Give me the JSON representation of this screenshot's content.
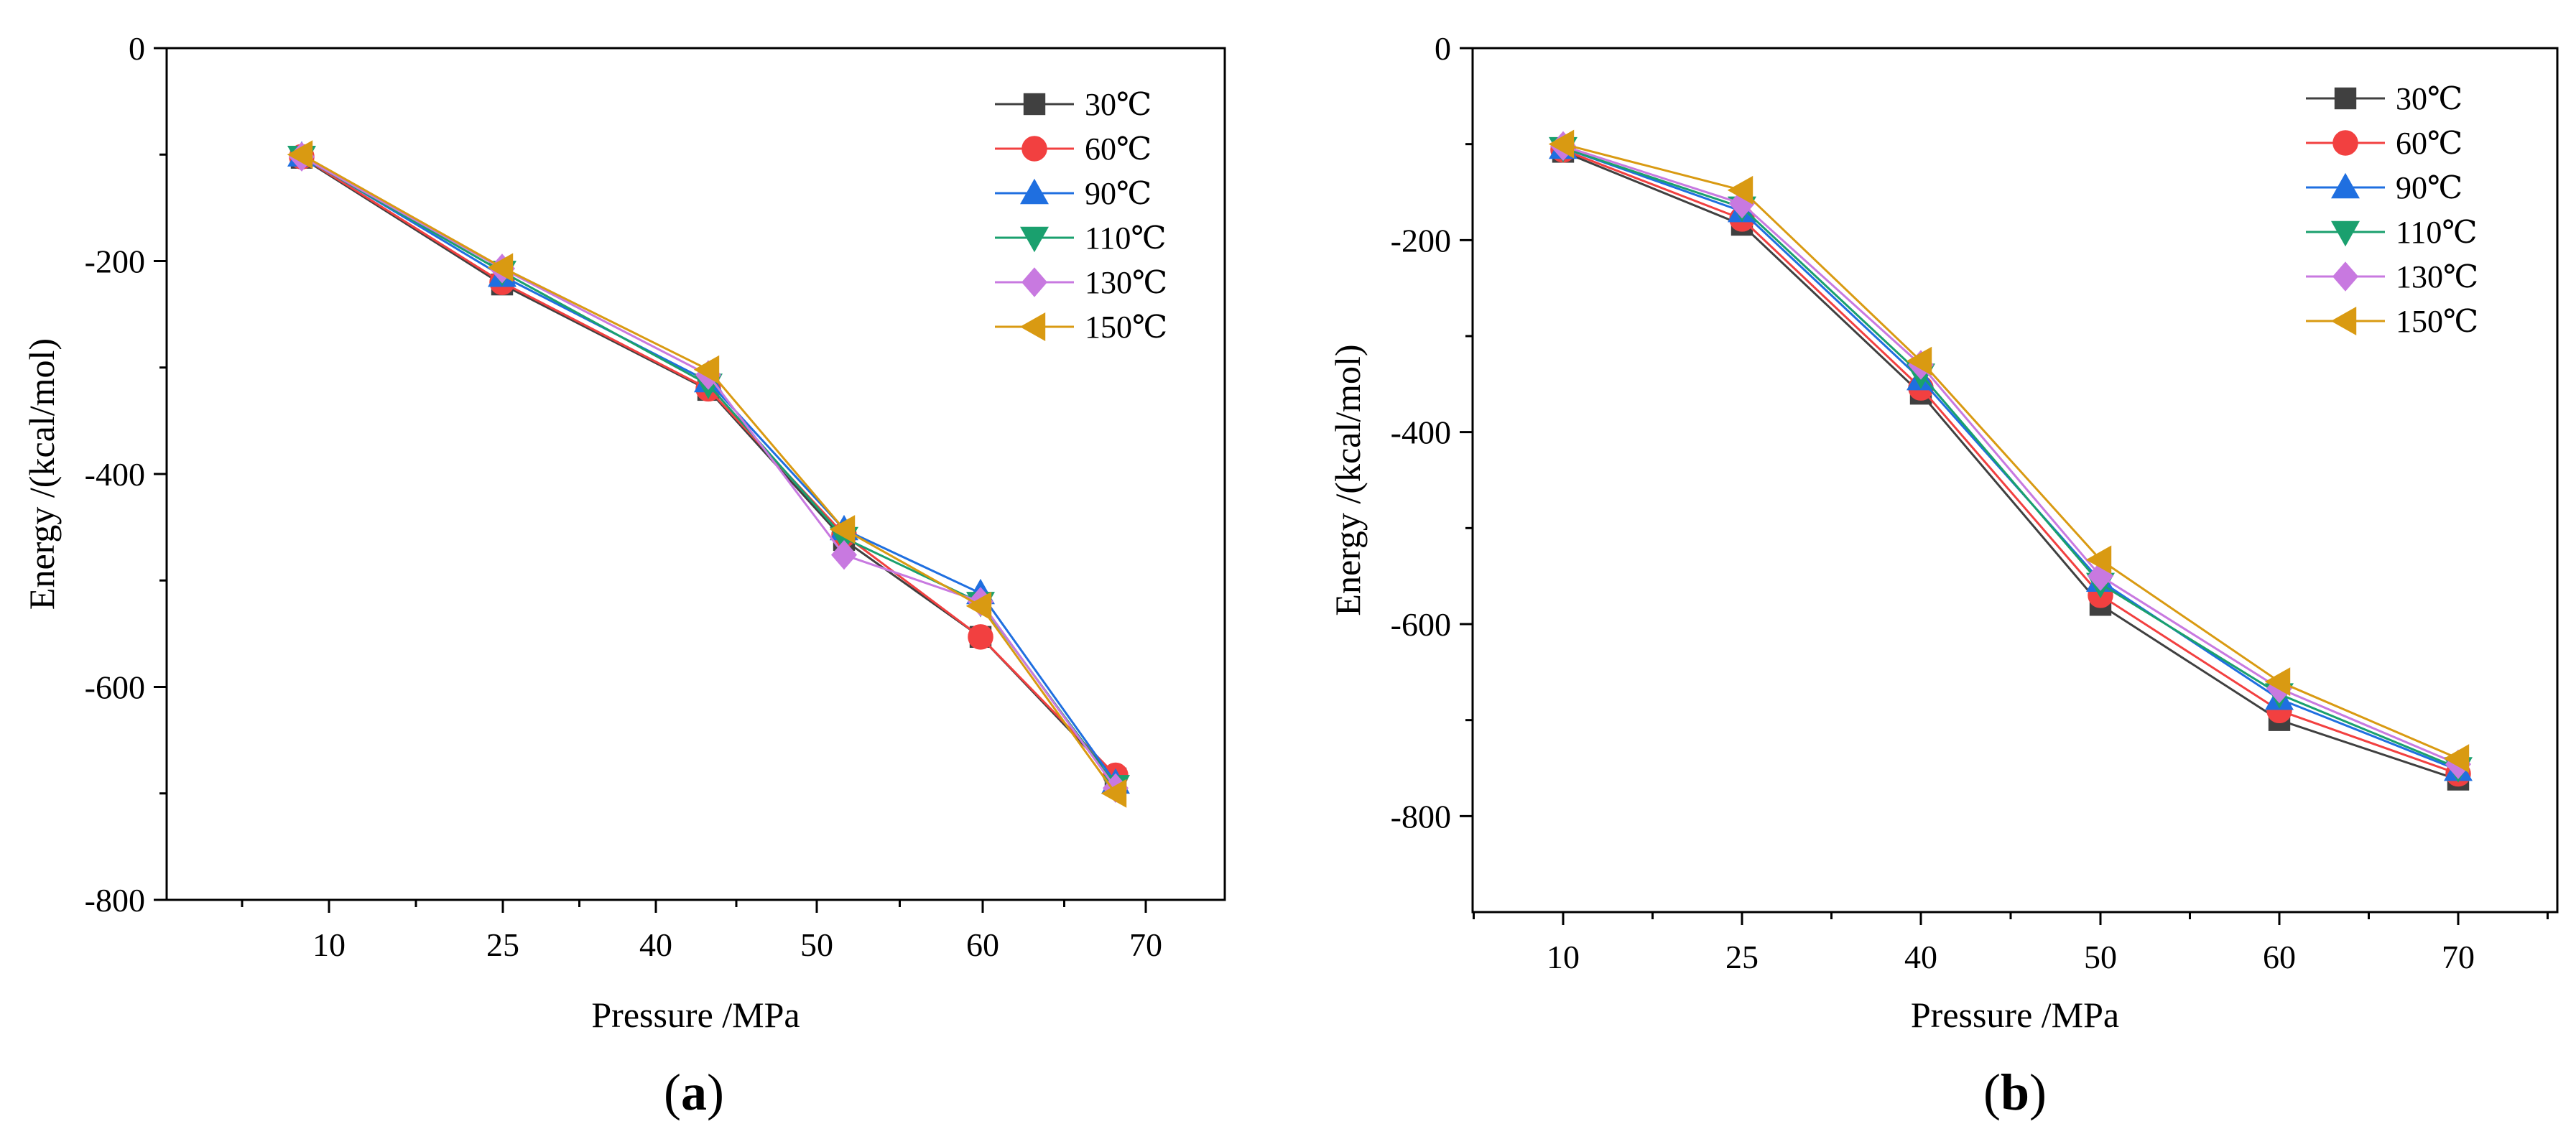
{
  "chart_data": [
    {
      "type": "line",
      "panel_label": "a",
      "xlabel": "Pressure /MPa",
      "ylabel": "Energy /(kcal/mol)",
      "x_ticks": [
        "10",
        "25",
        "40",
        "50",
        "60",
        "70"
      ],
      "y_ticks": [
        0,
        -200,
        -400,
        -600,
        -800
      ],
      "ylim": [
        -800,
        0
      ],
      "legend_position": "top-right",
      "series": [
        {
          "name": "30℃",
          "marker": "square",
          "color": "#404040",
          "x": [
            9.2,
            25.4,
            43.2,
            51.4,
            60.0,
            68.4
          ],
          "y": [
            -103,
            -222,
            -321,
            -462,
            -553,
            -686
          ]
        },
        {
          "name": "60℃",
          "marker": "circle",
          "color": "#f24040",
          "x": [
            9.2,
            25.4,
            43.2,
            51.4,
            60.0,
            68.4
          ],
          "y": [
            -102,
            -220,
            -320,
            -457,
            -553,
            -683
          ]
        },
        {
          "name": "90℃",
          "marker": "triangle-up",
          "color": "#1f6fe0",
          "x": [
            9.2,
            25.4,
            43.2,
            51.4,
            60.0,
            68.4
          ],
          "y": [
            -101,
            -214,
            -313,
            -452,
            -512,
            -690
          ]
        },
        {
          "name": "110℃",
          "marker": "triangle-down",
          "color": "#1aa06e",
          "x": [
            9.2,
            25.4,
            43.2,
            51.4,
            60.0,
            68.4
          ],
          "y": [
            -102,
            -210,
            -316,
            -460,
            -521,
            -693
          ]
        },
        {
          "name": "130℃",
          "marker": "diamond",
          "color": "#c879e0",
          "x": [
            9.2,
            25.4,
            43.2,
            51.4,
            60.0,
            68.4
          ],
          "y": [
            -102,
            -207,
            -307,
            -476,
            -520,
            -695
          ]
        },
        {
          "name": "150℃",
          "marker": "triangle-left",
          "color": "#d99a12",
          "x": [
            9.2,
            25.4,
            43.2,
            51.4,
            60.0,
            68.4
          ],
          "y": [
            -100,
            -206,
            -302,
            -452,
            -524,
            -700
          ]
        }
      ]
    },
    {
      "type": "line",
      "panel_label": "b",
      "xlabel": "Pressure /MPa",
      "ylabel": "Energy /(kcal/mol)",
      "x_ticks": [
        "10",
        "25",
        "40",
        "50",
        "60",
        "70"
      ],
      "y_ticks": [
        0,
        -200,
        -400,
        -600,
        -800
      ],
      "ylim": [
        -900,
        0
      ],
      "legend_position": "top-right",
      "series": [
        {
          "name": "30℃",
          "marker": "square",
          "color": "#404040",
          "x": [
            10,
            25,
            40,
            50,
            60,
            70
          ],
          "y": [
            -108,
            -184,
            -360,
            -580,
            -700,
            -762
          ]
        },
        {
          "name": "60℃",
          "marker": "circle",
          "color": "#f24040",
          "x": [
            10,
            25,
            40,
            50,
            60,
            70
          ],
          "y": [
            -106,
            -178,
            -354,
            -570,
            -690,
            -756
          ]
        },
        {
          "name": "90℃",
          "marker": "triangle-up",
          "color": "#1f6fe0",
          "x": [
            10,
            25,
            40,
            50,
            60,
            70
          ],
          "y": [
            -104,
            -170,
            -345,
            -555,
            -678,
            -752
          ]
        },
        {
          "name": "110℃",
          "marker": "triangle-down",
          "color": "#1aa06e",
          "x": [
            10,
            25,
            40,
            50,
            60,
            70
          ],
          "y": [
            -104,
            -166,
            -340,
            -558,
            -673,
            -750
          ]
        },
        {
          "name": "130℃",
          "marker": "diamond",
          "color": "#c879e0",
          "x": [
            10,
            25,
            40,
            50,
            60,
            70
          ],
          "y": [
            -102,
            -162,
            -330,
            -550,
            -667,
            -746
          ]
        },
        {
          "name": "150℃",
          "marker": "triangle-left",
          "color": "#d99a12",
          "x": [
            10,
            25,
            40,
            50,
            60,
            70
          ],
          "y": [
            -100,
            -148,
            -326,
            -533,
            -660,
            -740
          ]
        }
      ]
    }
  ]
}
